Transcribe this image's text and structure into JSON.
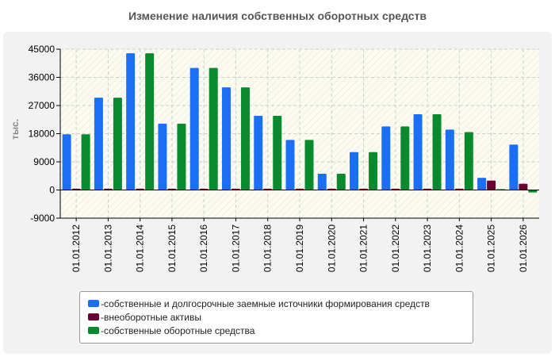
{
  "chart_data": {
    "type": "bar",
    "title": "Изменение наличия собственных оборотных средств",
    "ylabel": "тыс.",
    "xlabel": "",
    "ylim": [
      -9000,
      45000
    ],
    "yticks": [
      "45000",
      "36000",
      "27000",
      "18000",
      "9000",
      "0",
      "-9000"
    ],
    "ytick_values": [
      45000,
      36000,
      27000,
      18000,
      9000,
      0,
      -9000
    ],
    "categories": [
      "01.01.2012",
      "01.01.2013",
      "01.01.2014",
      "01.01.2015",
      "01.01.2016",
      "01.01.2017",
      "01.01.2018",
      "01.01.2019",
      "01.01.2020",
      "01.01.2021",
      "01.01.2022",
      "01.01.2023",
      "01.01.2024",
      "01.01.2025",
      "01.01.2026"
    ],
    "series": [
      {
        "name": "собственные и долгосрочные заемные источники формирования средств",
        "color": "#1a6ff5",
        "values": [
          17800,
          29500,
          43700,
          21200,
          39000,
          32800,
          23700,
          16000,
          5200,
          12100,
          20300,
          24200,
          19300,
          3900,
          14500
        ]
      },
      {
        "name": "внеоборотные активы",
        "color": "#6b0033",
        "values": [
          400,
          400,
          400,
          400,
          400,
          400,
          400,
          400,
          400,
          400,
          400,
          400,
          400,
          3000,
          2000
        ]
      },
      {
        "name": "собственные оборотные средства",
        "color": "#0a8a2e",
        "values": [
          17800,
          29500,
          43700,
          21200,
          39000,
          32800,
          23700,
          16000,
          5200,
          12100,
          20300,
          24200,
          18500,
          300,
          -800
        ]
      }
    ],
    "grid": true,
    "legend_position": "bottom"
  }
}
